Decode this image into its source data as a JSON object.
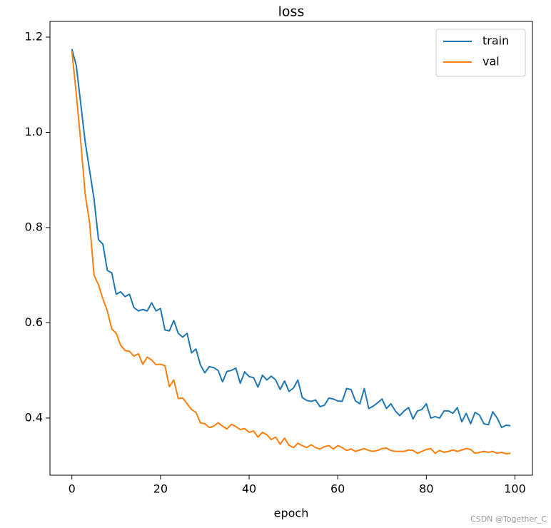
{
  "chart_data": {
    "type": "line",
    "title": "loss",
    "xlabel": "epoch",
    "x": [
      0,
      1,
      2,
      3,
      4,
      5,
      6,
      7,
      8,
      9,
      10,
      11,
      12,
      13,
      14,
      15,
      16,
      17,
      18,
      19,
      20,
      21,
      22,
      23,
      24,
      25,
      26,
      27,
      28,
      29,
      30,
      31,
      32,
      33,
      34,
      35,
      36,
      37,
      38,
      39,
      40,
      41,
      42,
      43,
      44,
      45,
      46,
      47,
      48,
      49,
      50,
      51,
      52,
      53,
      54,
      55,
      56,
      57,
      58,
      59,
      60,
      61,
      62,
      63,
      64,
      65,
      66,
      67,
      68,
      69,
      70,
      71,
      72,
      73,
      74,
      75,
      76,
      77,
      78,
      79,
      80,
      81,
      82,
      83,
      84,
      85,
      86,
      87,
      88,
      89,
      90,
      91,
      92,
      93,
      94,
      95,
      96,
      97,
      98,
      99
    ],
    "series": [
      {
        "name": "train",
        "color": "#1f77b4",
        "values": [
          1.175,
          1.14,
          1.06,
          0.98,
          0.92,
          0.86,
          0.775,
          0.765,
          0.71,
          0.705,
          0.66,
          0.665,
          0.655,
          0.66,
          0.632,
          0.625,
          0.628,
          0.625,
          0.642,
          0.625,
          0.63,
          0.585,
          0.583,
          0.605,
          0.578,
          0.57,
          0.578,
          0.537,
          0.545,
          0.512,
          0.495,
          0.508,
          0.506,
          0.5,
          0.476,
          0.498,
          0.5,
          0.505,
          0.473,
          0.497,
          0.487,
          0.485,
          0.465,
          0.49,
          0.48,
          0.488,
          0.48,
          0.46,
          0.478,
          0.456,
          0.463,
          0.48,
          0.443,
          0.437,
          0.435,
          0.438,
          0.424,
          0.427,
          0.442,
          0.44,
          0.436,
          0.435,
          0.462,
          0.46,
          0.436,
          0.43,
          0.462,
          0.42,
          0.425,
          0.432,
          0.44,
          0.42,
          0.43,
          0.415,
          0.405,
          0.415,
          0.422,
          0.398,
          0.415,
          0.418,
          0.43,
          0.4,
          0.403,
          0.4,
          0.415,
          0.415,
          0.41,
          0.422,
          0.392,
          0.41,
          0.388,
          0.412,
          0.406,
          0.388,
          0.386,
          0.413,
          0.4,
          0.38,
          0.385,
          0.384
        ]
      },
      {
        "name": "val",
        "color": "#ff7f0e",
        "values": [
          1.17,
          1.08,
          0.98,
          0.87,
          0.81,
          0.7,
          0.68,
          0.65,
          0.625,
          0.587,
          0.578,
          0.553,
          0.542,
          0.54,
          0.53,
          0.535,
          0.513,
          0.528,
          0.522,
          0.512,
          0.513,
          0.51,
          0.466,
          0.48,
          0.441,
          0.442,
          0.43,
          0.418,
          0.412,
          0.39,
          0.388,
          0.38,
          0.383,
          0.39,
          0.383,
          0.377,
          0.387,
          0.382,
          0.376,
          0.378,
          0.37,
          0.373,
          0.36,
          0.37,
          0.365,
          0.355,
          0.36,
          0.345,
          0.358,
          0.343,
          0.338,
          0.347,
          0.342,
          0.338,
          0.344,
          0.338,
          0.335,
          0.34,
          0.342,
          0.335,
          0.342,
          0.338,
          0.332,
          0.335,
          0.33,
          0.333,
          0.336,
          0.332,
          0.33,
          0.332,
          0.336,
          0.337,
          0.332,
          0.33,
          0.33,
          0.33,
          0.333,
          0.332,
          0.326,
          0.33,
          0.334,
          0.336,
          0.326,
          0.332,
          0.328,
          0.33,
          0.333,
          0.33,
          0.333,
          0.336,
          0.334,
          0.326,
          0.328,
          0.33,
          0.328,
          0.33,
          0.326,
          0.328,
          0.325,
          0.326
        ]
      }
    ],
    "xlim": [
      -4.95,
      103.95
    ],
    "xticks": [
      0,
      20,
      40,
      60,
      80,
      100
    ],
    "ylim": [
      0.28,
      1.233
    ],
    "yticks": [
      0.4,
      0.6,
      0.8,
      {
        "value": 1,
        "label": "1.0"
      },
      1.2
    ],
    "grid": false,
    "legend": "upper-right",
    "watermark": "CSDN @Together_C"
  }
}
